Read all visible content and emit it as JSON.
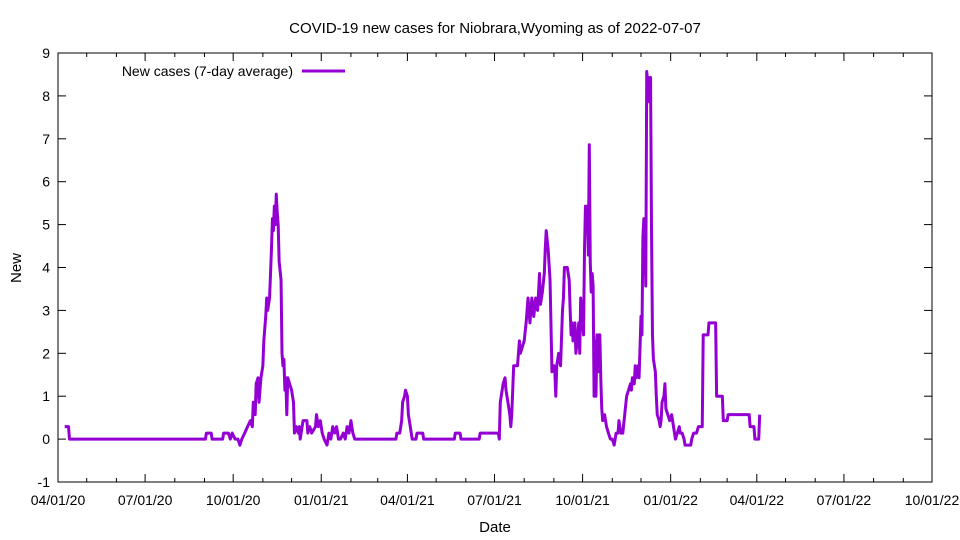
{
  "chart_data": {
    "type": "line",
    "title": "COVID-19 new cases for Niobrara,Wyoming as of 2022-07-07",
    "xlabel": "Date",
    "ylabel": "New",
    "xlim": [
      "2020-04-01",
      "2022-10-01"
    ],
    "ylim": [
      -1,
      9
    ],
    "x_ticks": [
      "04/01/20",
      "07/01/20",
      "10/01/20",
      "01/01/21",
      "04/01/21",
      "07/01/21",
      "10/01/21",
      "01/01/22",
      "04/01/22",
      "07/01/22",
      "10/01/22"
    ],
    "y_ticks": [
      -1,
      0,
      1,
      2,
      3,
      4,
      5,
      6,
      7,
      8,
      9
    ],
    "grid": false,
    "legend_position": "top-left",
    "series": [
      {
        "name": "New cases (7-day average)",
        "color": "#9400D3",
        "points": [
          [
            "2020-04-08",
            0.29
          ],
          [
            "2020-04-12",
            0.29
          ],
          [
            "2020-04-13",
            0
          ],
          [
            "2020-09-02",
            0
          ],
          [
            "2020-09-03",
            0.14
          ],
          [
            "2020-09-08",
            0.14
          ],
          [
            "2020-09-09",
            0
          ],
          [
            "2020-09-20",
            0
          ],
          [
            "2020-09-21",
            0.14
          ],
          [
            "2020-09-26",
            0.14
          ],
          [
            "2020-09-28",
            0
          ],
          [
            "2020-09-30",
            0.14
          ],
          [
            "2020-10-03",
            0
          ],
          [
            "2020-10-06",
            0
          ],
          [
            "2020-10-08",
            -0.14
          ],
          [
            "2020-10-10",
            0
          ],
          [
            "2020-10-13",
            0.14
          ],
          [
            "2020-10-16",
            0.29
          ],
          [
            "2020-10-19",
            0.43
          ],
          [
            "2020-10-21",
            0.29
          ],
          [
            "2020-10-22",
            0.86
          ],
          [
            "2020-10-24",
            0.57
          ],
          [
            "2020-10-25",
            1.29
          ],
          [
            "2020-10-27",
            1.43
          ],
          [
            "2020-10-28",
            0.86
          ],
          [
            "2020-10-30",
            1.43
          ],
          [
            "2020-11-01",
            1.71
          ],
          [
            "2020-11-02",
            2.29
          ],
          [
            "2020-11-04",
            2.86
          ],
          [
            "2020-11-05",
            3.29
          ],
          [
            "2020-11-06",
            3.0
          ],
          [
            "2020-11-08",
            3.29
          ],
          [
            "2020-11-09",
            3.86
          ],
          [
            "2020-11-10",
            4.43
          ],
          [
            "2020-11-11",
            5.14
          ],
          [
            "2020-11-12",
            4.86
          ],
          [
            "2020-11-13",
            5.43
          ],
          [
            "2020-11-14",
            5.0
          ],
          [
            "2020-11-15",
            5.71
          ],
          [
            "2020-11-16",
            5.29
          ],
          [
            "2020-11-17",
            5.0
          ],
          [
            "2020-11-18",
            4.14
          ],
          [
            "2020-11-20",
            3.71
          ],
          [
            "2020-11-21",
            2.0
          ],
          [
            "2020-11-22",
            1.71
          ],
          [
            "2020-11-23",
            1.86
          ],
          [
            "2020-11-24",
            1.14
          ],
          [
            "2020-11-25",
            1.43
          ],
          [
            "2020-11-26",
            0.57
          ],
          [
            "2020-11-27",
            1.43
          ],
          [
            "2020-12-01",
            1.14
          ],
          [
            "2020-12-03",
            0.86
          ],
          [
            "2020-12-04",
            0.14
          ],
          [
            "2020-12-06",
            0.29
          ],
          [
            "2020-12-08",
            0.14
          ],
          [
            "2020-12-09",
            0.29
          ],
          [
            "2020-12-10",
            0
          ],
          [
            "2020-12-12",
            0.29
          ],
          [
            "2020-12-13",
            0.43
          ],
          [
            "2020-12-17",
            0.43
          ],
          [
            "2020-12-18",
            0.14
          ],
          [
            "2020-12-20",
            0.29
          ],
          [
            "2020-12-22",
            0.14
          ],
          [
            "2020-12-26",
            0.29
          ],
          [
            "2020-12-27",
            0.57
          ],
          [
            "2020-12-29",
            0.29
          ],
          [
            "2020-12-31",
            0.43
          ],
          [
            "2021-01-02",
            0.14
          ],
          [
            "2021-01-04",
            0
          ],
          [
            "2021-01-07",
            -0.14
          ],
          [
            "2021-01-09",
            0.14
          ],
          [
            "2021-01-11",
            0
          ],
          [
            "2021-01-13",
            0.29
          ],
          [
            "2021-01-15",
            0.14
          ],
          [
            "2021-01-17",
            0.29
          ],
          [
            "2021-01-19",
            0
          ],
          [
            "2021-01-21",
            0
          ],
          [
            "2021-01-24",
            0.14
          ],
          [
            "2021-01-26",
            0
          ],
          [
            "2021-01-28",
            0.29
          ],
          [
            "2021-01-30",
            0.14
          ],
          [
            "2021-02-01",
            0.43
          ],
          [
            "2021-02-03",
            0.14
          ],
          [
            "2021-02-05",
            0
          ],
          [
            "2021-03-20",
            0
          ],
          [
            "2021-03-21",
            0.14
          ],
          [
            "2021-03-24",
            0.14
          ],
          [
            "2021-03-26",
            0.43
          ],
          [
            "2021-03-27",
            0.86
          ],
          [
            "2021-03-29",
            1.0
          ],
          [
            "2021-03-30",
            1.14
          ],
          [
            "2021-04-01",
            1.0
          ],
          [
            "2021-04-02",
            0.57
          ],
          [
            "2021-04-04",
            0.29
          ],
          [
            "2021-04-06",
            0
          ],
          [
            "2021-04-10",
            0
          ],
          [
            "2021-04-11",
            0.14
          ],
          [
            "2021-04-17",
            0.14
          ],
          [
            "2021-04-18",
            0
          ],
          [
            "2021-05-20",
            0
          ],
          [
            "2021-05-21",
            0.14
          ],
          [
            "2021-05-26",
            0.14
          ],
          [
            "2021-05-27",
            0
          ],
          [
            "2021-06-15",
            0
          ],
          [
            "2021-06-16",
            0.14
          ],
          [
            "2021-07-05",
            0.14
          ],
          [
            "2021-07-06",
            0
          ],
          [
            "2021-07-07",
            0.86
          ],
          [
            "2021-07-08",
            1.0
          ],
          [
            "2021-07-10",
            1.29
          ],
          [
            "2021-07-12",
            1.43
          ],
          [
            "2021-07-13",
            1.14
          ],
          [
            "2021-07-15",
            0.86
          ],
          [
            "2021-07-17",
            0.57
          ],
          [
            "2021-07-18",
            0.29
          ],
          [
            "2021-07-19",
            0.57
          ],
          [
            "2021-07-21",
            1.71
          ],
          [
            "2021-07-25",
            1.71
          ],
          [
            "2021-07-27",
            2.29
          ],
          [
            "2021-07-28",
            2.0
          ],
          [
            "2021-08-01",
            2.29
          ],
          [
            "2021-08-03",
            2.71
          ],
          [
            "2021-08-05",
            3.29
          ],
          [
            "2021-08-07",
            2.71
          ],
          [
            "2021-08-09",
            3.29
          ],
          [
            "2021-08-11",
            2.86
          ],
          [
            "2021-08-13",
            3.29
          ],
          [
            "2021-08-15",
            3.0
          ],
          [
            "2021-08-17",
            3.86
          ],
          [
            "2021-08-18",
            3.14
          ],
          [
            "2021-08-20",
            3.43
          ],
          [
            "2021-08-22",
            3.86
          ],
          [
            "2021-08-23",
            4.43
          ],
          [
            "2021-08-24",
            4.86
          ],
          [
            "2021-08-26",
            4.43
          ],
          [
            "2021-08-28",
            3.71
          ],
          [
            "2021-08-30",
            1.57
          ],
          [
            "2021-09-01",
            1.71
          ],
          [
            "2021-09-02",
            1.57
          ],
          [
            "2021-09-03",
            1.0
          ],
          [
            "2021-09-04",
            1.71
          ],
          [
            "2021-09-06",
            2.0
          ],
          [
            "2021-09-08",
            1.71
          ],
          [
            "2021-09-10",
            3.0
          ],
          [
            "2021-09-11",
            3.29
          ],
          [
            "2021-09-12",
            4.0
          ],
          [
            "2021-09-15",
            4.0
          ],
          [
            "2021-09-17",
            3.71
          ],
          [
            "2021-09-18",
            3.0
          ],
          [
            "2021-09-19",
            2.43
          ],
          [
            "2021-09-20",
            2.71
          ],
          [
            "2021-09-21",
            2.29
          ],
          [
            "2021-09-23",
            2.71
          ],
          [
            "2021-09-24",
            2.0
          ],
          [
            "2021-09-26",
            2.43
          ],
          [
            "2021-09-27",
            2.71
          ],
          [
            "2021-09-28",
            2.0
          ],
          [
            "2021-09-29",
            3.29
          ],
          [
            "2021-10-01",
            2.71
          ],
          [
            "2021-10-02",
            2.43
          ],
          [
            "2021-10-03",
            4.43
          ],
          [
            "2021-10-04",
            5.43
          ],
          [
            "2021-10-05",
            4.86
          ],
          [
            "2021-10-06",
            5.43
          ],
          [
            "2021-10-07",
            4.29
          ],
          [
            "2021-10-08",
            6.86
          ],
          [
            "2021-10-09",
            4.14
          ],
          [
            "2021-10-10",
            3.43
          ],
          [
            "2021-10-11",
            3.86
          ],
          [
            "2021-10-12",
            3.57
          ],
          [
            "2021-10-13",
            1.0
          ],
          [
            "2021-10-14",
            2.29
          ],
          [
            "2021-10-15",
            1.0
          ],
          [
            "2021-10-16",
            2.43
          ],
          [
            "2021-10-17",
            1.57
          ],
          [
            "2021-10-18",
            2.43
          ],
          [
            "2021-10-19",
            2.43
          ],
          [
            "2021-10-20",
            1.43
          ],
          [
            "2021-10-21",
            0.71
          ],
          [
            "2021-10-22",
            0.43
          ],
          [
            "2021-10-24",
            0.57
          ],
          [
            "2021-10-26",
            0.29
          ],
          [
            "2021-10-28",
            0.14
          ],
          [
            "2021-10-30",
            0
          ],
          [
            "2021-11-01",
            0
          ],
          [
            "2021-11-03",
            -0.14
          ],
          [
            "2021-11-05",
            0.14
          ],
          [
            "2021-11-07",
            0.14
          ],
          [
            "2021-11-08",
            0.43
          ],
          [
            "2021-11-10",
            0.14
          ],
          [
            "2021-11-12",
            0.14
          ],
          [
            "2021-11-14",
            0.57
          ],
          [
            "2021-11-16",
            1.0
          ],
          [
            "2021-11-18",
            1.14
          ],
          [
            "2021-11-20",
            1.29
          ],
          [
            "2021-11-21",
            1.14
          ],
          [
            "2021-11-22",
            1.43
          ],
          [
            "2021-11-24",
            1.29
          ],
          [
            "2021-11-25",
            1.71
          ],
          [
            "2021-11-26",
            1.43
          ],
          [
            "2021-11-28",
            1.71
          ],
          [
            "2021-11-29",
            1.43
          ],
          [
            "2021-12-01",
            2.86
          ],
          [
            "2021-12-02",
            2.43
          ],
          [
            "2021-12-03",
            4.71
          ],
          [
            "2021-12-04",
            5.14
          ],
          [
            "2021-12-05",
            4.86
          ],
          [
            "2021-12-06",
            3.57
          ],
          [
            "2021-12-07",
            8.57
          ],
          [
            "2021-12-08",
            8.29
          ],
          [
            "2021-12-09",
            8.43
          ],
          [
            "2021-12-10",
            7.86
          ],
          [
            "2021-12-11",
            8.43
          ],
          [
            "2021-12-12",
            4.86
          ],
          [
            "2021-12-13",
            2.43
          ],
          [
            "2021-12-14",
            1.86
          ],
          [
            "2021-12-16",
            1.57
          ],
          [
            "2021-12-17",
            1.0
          ],
          [
            "2021-12-18",
            0.57
          ],
          [
            "2021-12-20",
            0.43
          ],
          [
            "2021-12-21",
            0.29
          ],
          [
            "2021-12-22",
            0.43
          ],
          [
            "2021-12-23",
            0.86
          ],
          [
            "2021-12-25",
            1.0
          ],
          [
            "2021-12-26",
            1.29
          ],
          [
            "2021-12-27",
            0.71
          ],
          [
            "2021-12-29",
            0.57
          ],
          [
            "2021-12-31",
            0.43
          ],
          [
            "2022-01-02",
            0.57
          ],
          [
            "2022-01-04",
            0.29
          ],
          [
            "2022-01-06",
            0
          ],
          [
            "2022-01-08",
            0.14
          ],
          [
            "2022-01-10",
            0.29
          ],
          [
            "2022-01-11",
            0.14
          ],
          [
            "2022-01-13",
            0.14
          ],
          [
            "2022-01-15",
            0
          ],
          [
            "2022-01-16",
            -0.14
          ],
          [
            "2022-01-22",
            -0.14
          ],
          [
            "2022-01-23",
            0
          ],
          [
            "2022-01-25",
            0.14
          ],
          [
            "2022-01-28",
            0.14
          ],
          [
            "2022-01-30",
            0.29
          ],
          [
            "2022-02-03",
            0.29
          ],
          [
            "2022-02-04",
            2.43
          ],
          [
            "2022-02-09",
            2.43
          ],
          [
            "2022-02-10",
            2.71
          ],
          [
            "2022-02-17",
            2.71
          ],
          [
            "2022-02-18",
            1.0
          ],
          [
            "2022-02-24",
            1.0
          ],
          [
            "2022-02-25",
            0.43
          ],
          [
            "2022-03-01",
            0.43
          ],
          [
            "2022-03-02",
            0.57
          ],
          [
            "2022-03-24",
            0.57
          ],
          [
            "2022-03-25",
            0.29
          ],
          [
            "2022-03-29",
            0.29
          ],
          [
            "2022-03-30",
            0
          ],
          [
            "2022-04-03",
            0
          ],
          [
            "2022-04-04",
            0.57
          ]
        ]
      }
    ]
  }
}
